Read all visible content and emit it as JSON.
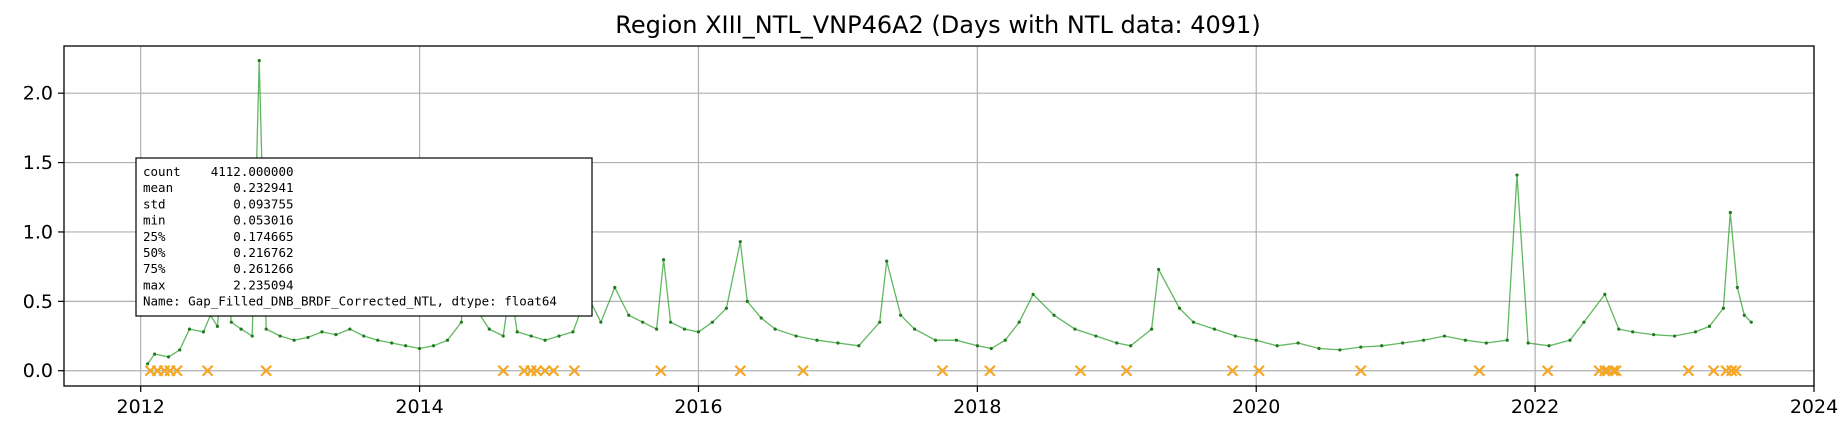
{
  "chart_data": {
    "type": "scatter",
    "title": "Region XIII_NTL_VNP46A2 (Days with NTL data: 4091)",
    "xlabel": "",
    "ylabel": "",
    "xlim": [
      2011.45,
      2024.0
    ],
    "ylim": [
      -0.11,
      2.34
    ],
    "x_ticks": [
      2012,
      2014,
      2016,
      2018,
      2020,
      2022,
      2024
    ],
    "x_tick_labels": [
      "2012",
      "2014",
      "2016",
      "2018",
      "2020",
      "2022",
      "2024"
    ],
    "y_ticks": [
      0.0,
      0.5,
      1.0,
      1.5,
      2.0
    ],
    "y_tick_labels": [
      "0.0",
      "0.5",
      "1.0",
      "1.5",
      "2.0"
    ],
    "grid": true,
    "colors": {
      "ntl_line": "#2ca02c",
      "ntl_points": "#1f7a1f",
      "gap_markers": "#f5a623",
      "axis": "#000000",
      "grid": "#b0b0b0"
    },
    "series": [
      {
        "type": "line+points",
        "color": "#2ca02c",
        "points": [
          [
            2012.05,
            0.05
          ],
          [
            2012.1,
            0.12
          ],
          [
            2012.2,
            0.1
          ],
          [
            2012.28,
            0.15
          ],
          [
            2012.35,
            0.3
          ],
          [
            2012.45,
            0.28
          ],
          [
            2012.5,
            0.4
          ],
          [
            2012.55,
            0.32
          ],
          [
            2012.6,
            0.85
          ],
          [
            2012.65,
            0.35
          ],
          [
            2012.72,
            0.3
          ],
          [
            2012.8,
            0.25
          ],
          [
            2012.85,
            2.235
          ],
          [
            2012.9,
            0.3
          ],
          [
            2013.0,
            0.25
          ],
          [
            2013.1,
            0.22
          ],
          [
            2013.2,
            0.24
          ],
          [
            2013.3,
            0.28
          ],
          [
            2013.4,
            0.26
          ],
          [
            2013.5,
            0.3
          ],
          [
            2013.6,
            0.25
          ],
          [
            2013.7,
            0.22
          ],
          [
            2013.8,
            0.2
          ],
          [
            2013.9,
            0.18
          ],
          [
            2014.0,
            0.16
          ],
          [
            2014.1,
            0.18
          ],
          [
            2014.2,
            0.22
          ],
          [
            2014.3,
            0.35
          ],
          [
            2014.32,
            0.8
          ],
          [
            2014.4,
            0.45
          ],
          [
            2014.5,
            0.3
          ],
          [
            2014.6,
            0.25
          ],
          [
            2014.65,
            0.6
          ],
          [
            2014.7,
            0.28
          ],
          [
            2014.8,
            0.25
          ],
          [
            2014.9,
            0.22
          ],
          [
            2015.0,
            0.25
          ],
          [
            2015.1,
            0.28
          ],
          [
            2015.2,
            0.55
          ],
          [
            2015.3,
            0.35
          ],
          [
            2015.4,
            0.6
          ],
          [
            2015.5,
            0.4
          ],
          [
            2015.6,
            0.35
          ],
          [
            2015.7,
            0.3
          ],
          [
            2015.75,
            0.8
          ],
          [
            2015.8,
            0.35
          ],
          [
            2015.9,
            0.3
          ],
          [
            2016.0,
            0.28
          ],
          [
            2016.1,
            0.35
          ],
          [
            2016.2,
            0.45
          ],
          [
            2016.3,
            0.93
          ],
          [
            2016.35,
            0.5
          ],
          [
            2016.45,
            0.38
          ],
          [
            2016.55,
            0.3
          ],
          [
            2016.7,
            0.25
          ],
          [
            2016.85,
            0.22
          ],
          [
            2017.0,
            0.2
          ],
          [
            2017.15,
            0.18
          ],
          [
            2017.3,
            0.35
          ],
          [
            2017.35,
            0.79
          ],
          [
            2017.45,
            0.4
          ],
          [
            2017.55,
            0.3
          ],
          [
            2017.7,
            0.22
          ],
          [
            2017.85,
            0.22
          ],
          [
            2018.0,
            0.18
          ],
          [
            2018.1,
            0.16
          ],
          [
            2018.2,
            0.22
          ],
          [
            2018.3,
            0.35
          ],
          [
            2018.4,
            0.55
          ],
          [
            2018.55,
            0.4
          ],
          [
            2018.7,
            0.3
          ],
          [
            2018.85,
            0.25
          ],
          [
            2019.0,
            0.2
          ],
          [
            2019.1,
            0.18
          ],
          [
            2019.25,
            0.3
          ],
          [
            2019.3,
            0.73
          ],
          [
            2019.45,
            0.45
          ],
          [
            2019.55,
            0.35
          ],
          [
            2019.7,
            0.3
          ],
          [
            2019.85,
            0.25
          ],
          [
            2020.0,
            0.22
          ],
          [
            2020.15,
            0.18
          ],
          [
            2020.3,
            0.2
          ],
          [
            2020.45,
            0.16
          ],
          [
            2020.6,
            0.15
          ],
          [
            2020.75,
            0.17
          ],
          [
            2020.9,
            0.18
          ],
          [
            2021.05,
            0.2
          ],
          [
            2021.2,
            0.22
          ],
          [
            2021.35,
            0.25
          ],
          [
            2021.5,
            0.22
          ],
          [
            2021.65,
            0.2
          ],
          [
            2021.8,
            0.22
          ],
          [
            2021.87,
            1.41
          ],
          [
            2021.95,
            0.2
          ],
          [
            2022.1,
            0.18
          ],
          [
            2022.25,
            0.22
          ],
          [
            2022.35,
            0.35
          ],
          [
            2022.5,
            0.55
          ],
          [
            2022.6,
            0.3
          ],
          [
            2022.7,
            0.28
          ],
          [
            2022.85,
            0.26
          ],
          [
            2023.0,
            0.25
          ],
          [
            2023.15,
            0.28
          ],
          [
            2023.25,
            0.32
          ],
          [
            2023.35,
            0.45
          ],
          [
            2023.4,
            1.14
          ],
          [
            2023.45,
            0.6
          ],
          [
            2023.5,
            0.4
          ],
          [
            2023.55,
            0.35
          ]
        ]
      },
      {
        "type": "markers",
        "marker": "x",
        "color": "#f5a623",
        "points": [
          [
            2012.07,
            0.0
          ],
          [
            2012.12,
            0.0
          ],
          [
            2012.17,
            0.0
          ],
          [
            2012.21,
            0.0
          ],
          [
            2012.26,
            0.0
          ],
          [
            2012.48,
            0.0
          ],
          [
            2012.9,
            0.0
          ],
          [
            2014.6,
            0.0
          ],
          [
            2014.75,
            0.0
          ],
          [
            2014.8,
            0.0
          ],
          [
            2014.84,
            0.0
          ],
          [
            2014.9,
            0.0
          ],
          [
            2014.96,
            0.0
          ],
          [
            2015.11,
            0.0
          ],
          [
            2015.73,
            0.0
          ],
          [
            2016.3,
            0.0
          ],
          [
            2016.75,
            0.0
          ],
          [
            2017.75,
            0.0
          ],
          [
            2018.09,
            0.0
          ],
          [
            2018.74,
            0.0
          ],
          [
            2019.07,
            0.0
          ],
          [
            2019.83,
            0.0
          ],
          [
            2020.02,
            0.0
          ],
          [
            2020.75,
            0.0
          ],
          [
            2021.6,
            0.0
          ],
          [
            2022.09,
            0.0
          ],
          [
            2022.46,
            0.0
          ],
          [
            2022.5,
            0.0
          ],
          [
            2022.52,
            0.0
          ],
          [
            2022.56,
            0.0
          ],
          [
            2022.58,
            0.0
          ],
          [
            2023.1,
            0.0
          ],
          [
            2023.28,
            0.0
          ],
          [
            2023.37,
            0.0
          ],
          [
            2023.41,
            0.0
          ],
          [
            2023.44,
            0.0
          ]
        ]
      }
    ],
    "stats_box": {
      "lines": [
        "count    4112.000000",
        "mean        0.232941",
        "std         0.093755",
        "min         0.053016",
        "25%         0.174665",
        "50%         0.216762",
        "75%         0.261266",
        "max         2.235094",
        "Name: Gap_Filled_DNB_BRDF_Corrected_NTL, dtype: float64"
      ]
    }
  }
}
